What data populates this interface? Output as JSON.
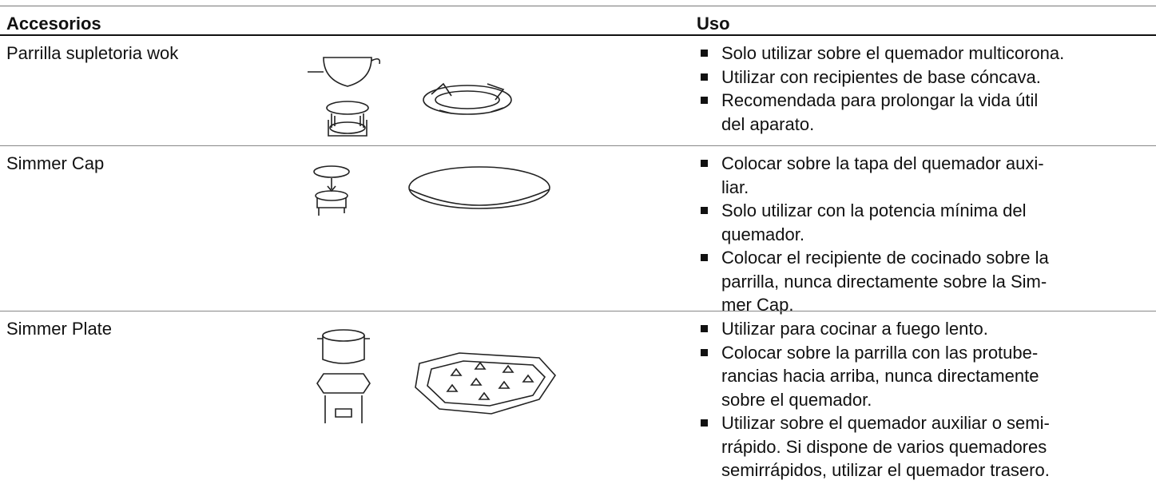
{
  "header": {
    "col1": "Accesorios",
    "col3": "Uso"
  },
  "rows": [
    {
      "name": "Parrilla supletoria wok",
      "bullets": [
        [
          "Solo utilizar sobre el quemador multicorona."
        ],
        [
          "Utilizar con recipientes de base cóncava."
        ],
        [
          "Recomendada para prolongar la vida útil",
          "del aparato."
        ]
      ]
    },
    {
      "name": "Simmer Cap",
      "bullets": [
        [
          "Colocar sobre la tapa del quemador auxi-",
          "liar."
        ],
        [
          "Solo utilizar con la potencia mínima del",
          "quemador."
        ],
        [
          "Colocar el recipiente de cocinado sobre la",
          "parrilla, nunca directamente sobre la Sim-",
          "mer Cap."
        ]
      ]
    },
    {
      "name": "Simmer Plate",
      "bullets": [
        [
          "Utilizar para cocinar a fuego lento."
        ],
        [
          "Colocar sobre la parrilla con las protube-",
          "rancias hacia arriba, nunca directamente",
          "sobre el quemador."
        ],
        [
          "Utilizar sobre el quemador auxiliar o semi-",
          "rrápido. Si dispone de varios quemadores",
          "semirrápidos, utilizar el quemador trasero."
        ]
      ]
    }
  ]
}
